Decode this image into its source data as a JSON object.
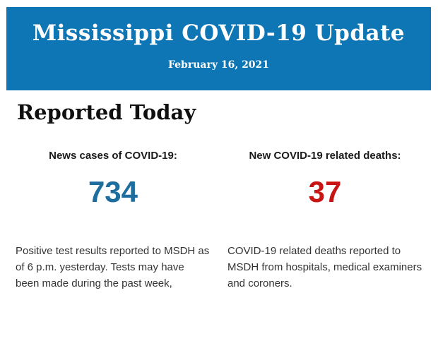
{
  "header": {
    "title": "Mississippi COVID-19 Update",
    "date": "February 16, 2021",
    "background_color": "#0e76b4",
    "text_color": "#ffffff"
  },
  "section": {
    "title": "Reported Today"
  },
  "stats": [
    {
      "label": "News cases of COVID-19:",
      "value": "734",
      "value_color": "#1d6d9e",
      "description": "Positive test results reported to MSDH as of 6 p.m. yesterday. Tests may have been made during the past week,"
    },
    {
      "label": "New COVID-19 related deaths:",
      "value": "37",
      "value_color": "#c91414",
      "description": "COVID-19 related deaths reported to MSDH from hospitals, medical examiners and coroners."
    }
  ]
}
